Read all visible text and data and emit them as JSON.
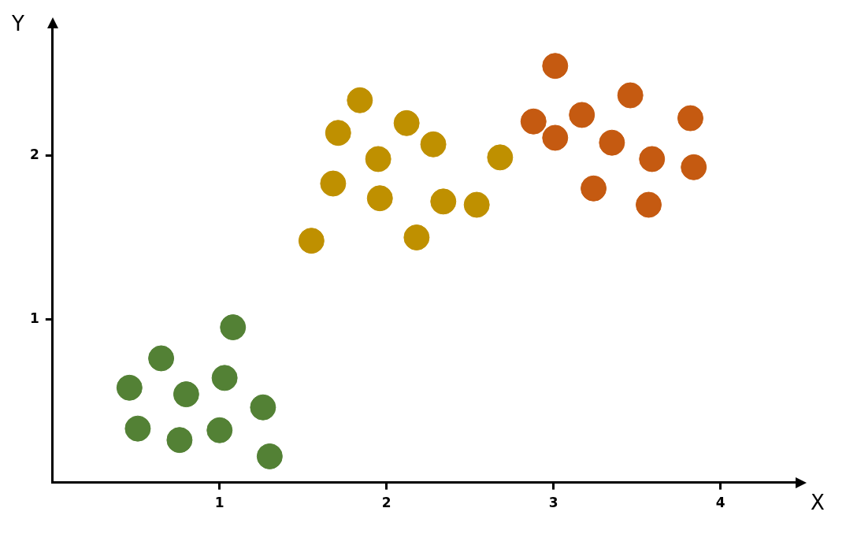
{
  "chart_data": {
    "type": "scatter",
    "xlabel": "X",
    "ylabel": "Y",
    "xlim": [
      0,
      4.45
    ],
    "ylim": [
      0,
      2.78
    ],
    "xticks": [
      1,
      2,
      3,
      4
    ],
    "yticks": [
      1,
      2
    ],
    "grid": false,
    "legend": false,
    "marker": "circle",
    "series": [
      {
        "color": "#538135",
        "x": [
          0.46,
          0.65,
          1.08,
          0.8,
          1.03,
          0.51,
          0.76,
          1.0,
          1.26,
          1.3
        ],
        "values": [
          0.58,
          0.76,
          0.95,
          0.54,
          0.64,
          0.33,
          0.26,
          0.32,
          0.46,
          0.16
        ]
      },
      {
        "color": "#bf9000",
        "x": [
          1.55,
          1.84,
          1.71,
          1.68,
          1.95,
          2.12,
          2.28,
          1.96,
          2.34,
          2.18,
          2.54,
          2.68
        ],
        "values": [
          1.48,
          2.34,
          2.14,
          1.83,
          1.98,
          2.2,
          2.07,
          1.74,
          1.72,
          1.5,
          1.7,
          1.99
        ]
      },
      {
        "color": "#c55a11",
        "x": [
          3.01,
          2.88,
          3.01,
          3.17,
          3.46,
          3.35,
          3.24,
          3.59,
          3.82,
          3.57,
          3.84
        ],
        "values": [
          2.55,
          2.21,
          2.11,
          2.25,
          2.37,
          2.08,
          1.8,
          1.98,
          2.23,
          1.7,
          1.93
        ]
      }
    ]
  }
}
